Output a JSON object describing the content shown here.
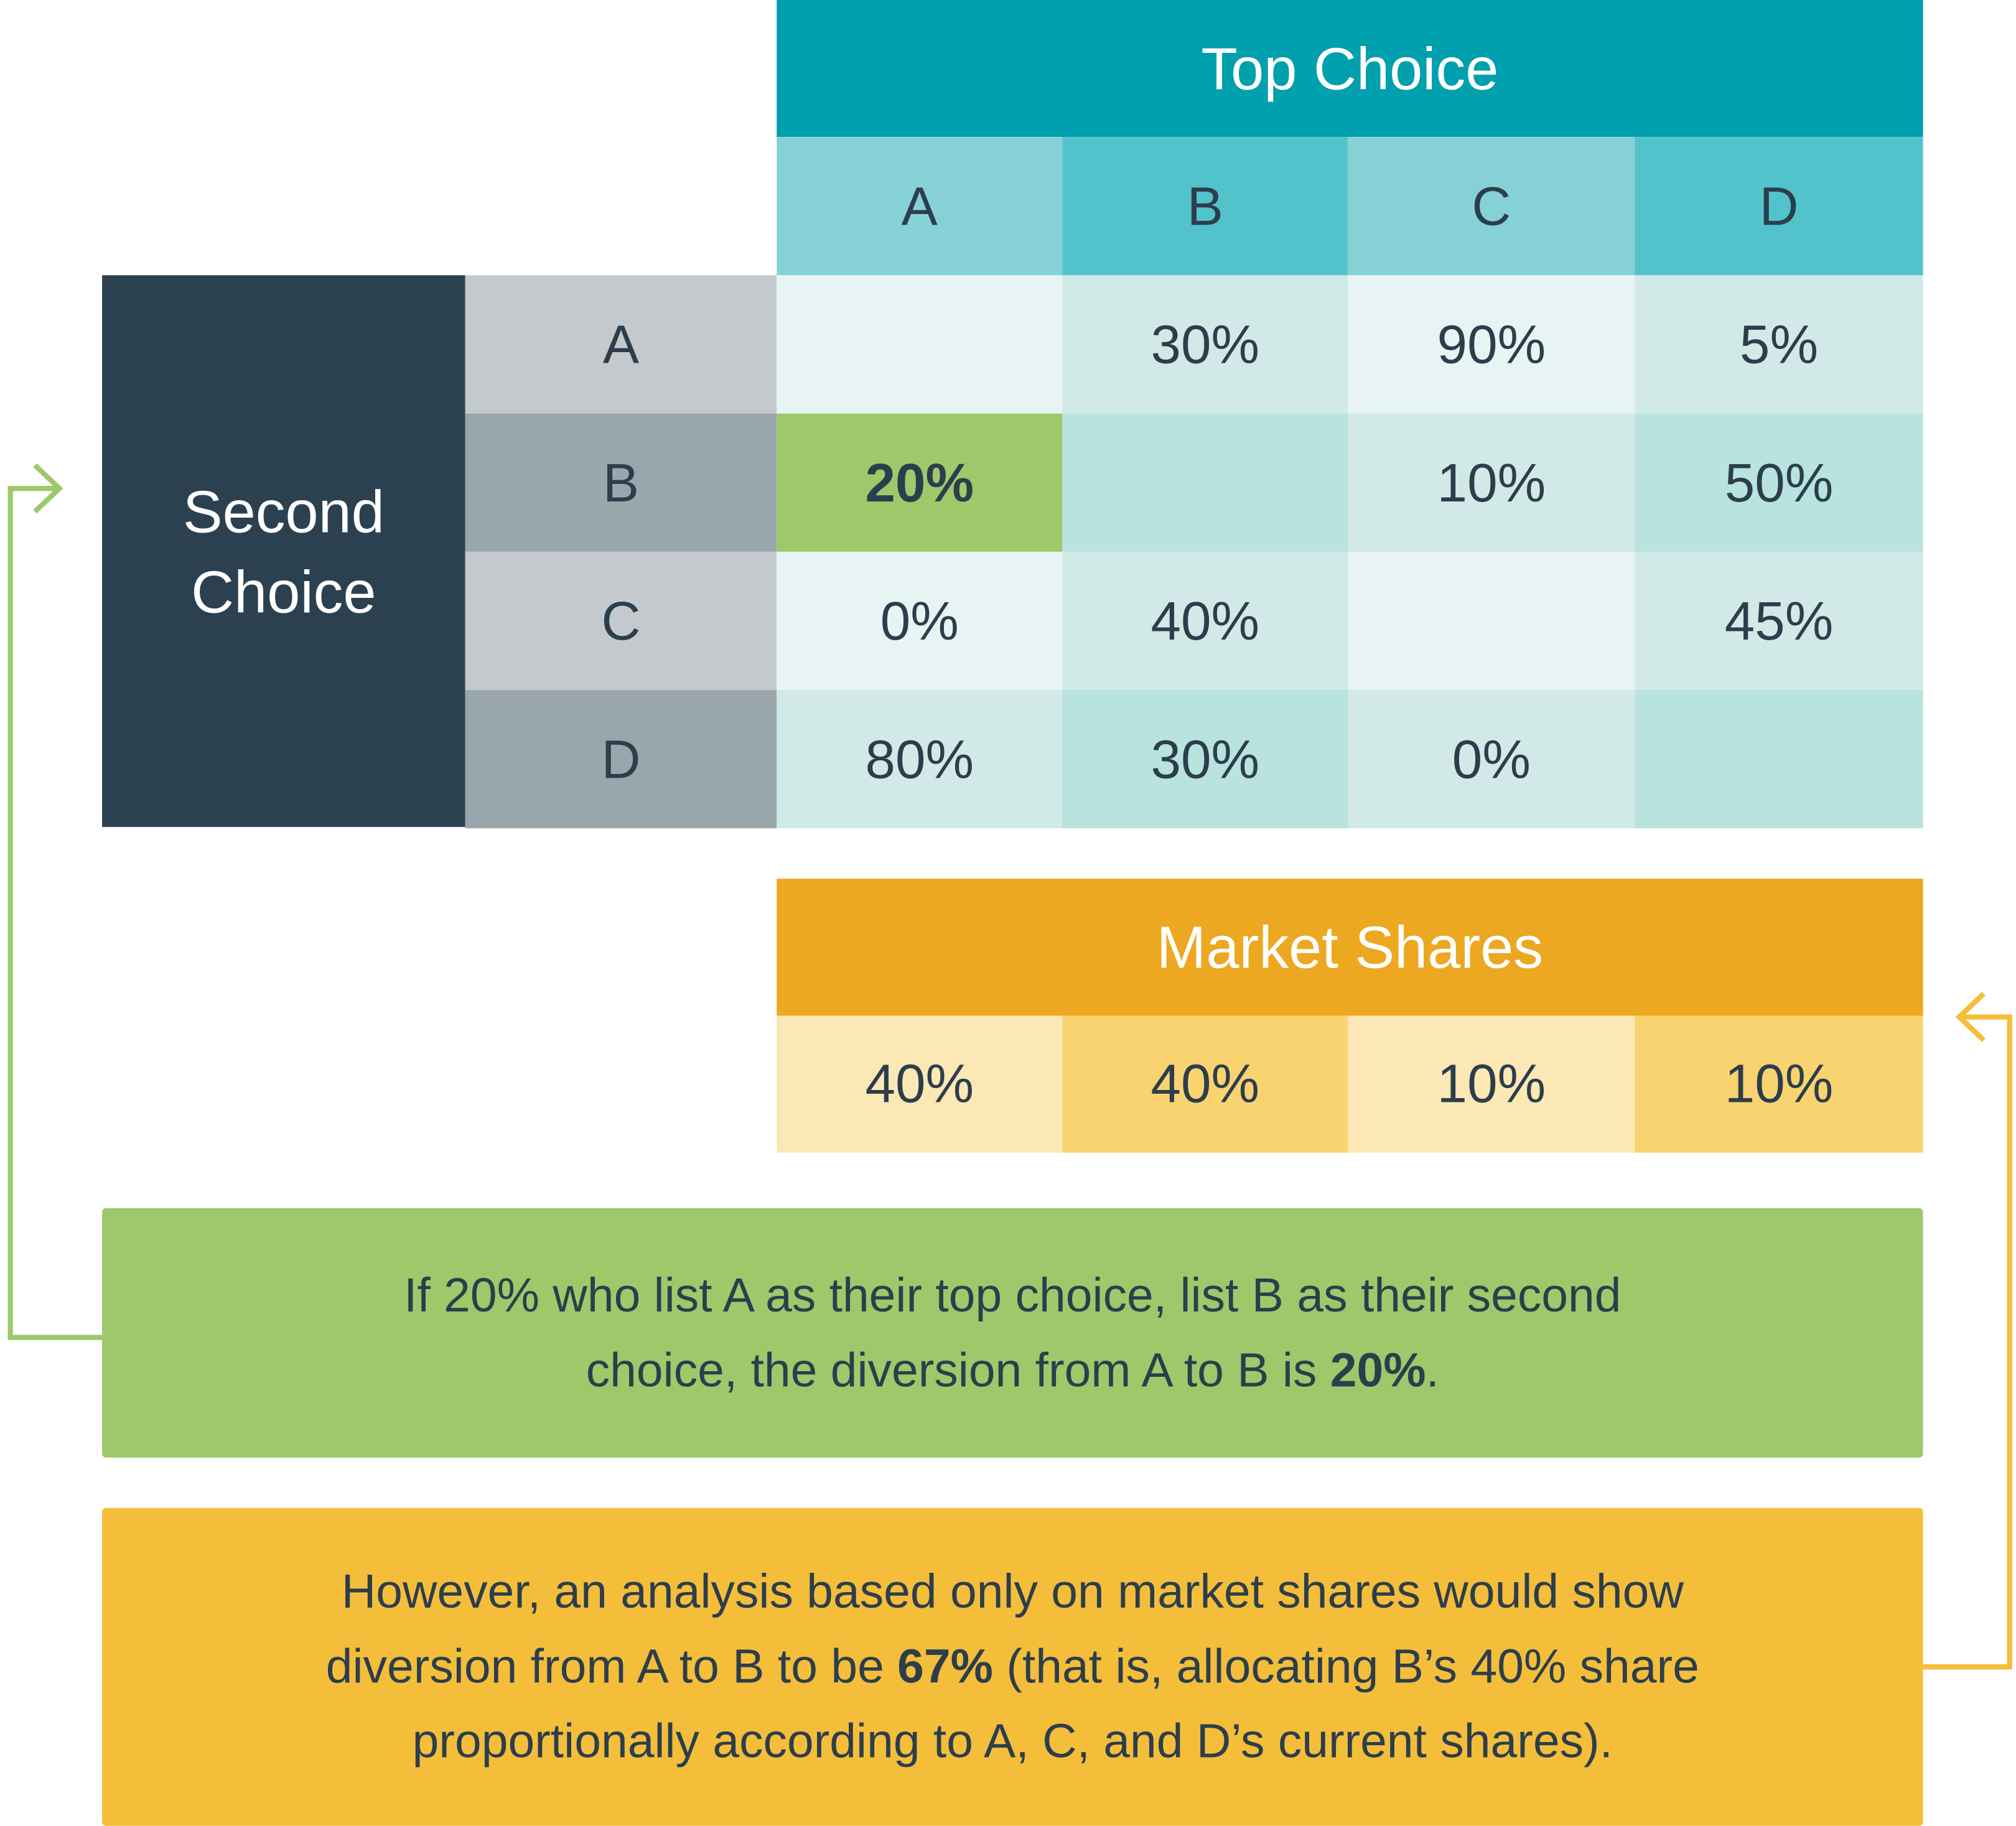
{
  "top_choice": {
    "title": "Top Choice",
    "columns": [
      "A",
      "B",
      "C",
      "D"
    ]
  },
  "second_choice": {
    "title_line1": "Second",
    "title_line2": "Choice",
    "rows": [
      "A",
      "B",
      "C",
      "D"
    ]
  },
  "matrix": [
    [
      "",
      "30%",
      "90%",
      "5%"
    ],
    [
      "20%",
      "",
      "10%",
      "50%"
    ],
    [
      "0%",
      "40%",
      "",
      "45%"
    ],
    [
      "80%",
      "30%",
      "0%",
      ""
    ]
  ],
  "highlight": {
    "row": 1,
    "col": 0,
    "color": "#9dc96b"
  },
  "market_shares": {
    "title": "Market Shares",
    "values": [
      "40%",
      "40%",
      "10%",
      "10%"
    ]
  },
  "note_green": {
    "line1": "If 20% who list A as their top choice, list B as their second",
    "line2_pre": "choice, the diversion from A to B is ",
    "line2_bold": "20%",
    "line2_post": "."
  },
  "note_yellow": {
    "line1": "However, an analysis based only on market shares would show",
    "line2_pre": "diversion from A to B to be ",
    "line2_bold": "67%",
    "line2_post": " (that is, allocating B’s 40% share",
    "line3": "proportionally according to A, C, and D’s current shares)."
  },
  "colors": {
    "teal": "#00a0af",
    "dark": "#2c4150",
    "green": "#9dc96b",
    "orange": "#eca820",
    "yellow": "#f4be3a"
  }
}
